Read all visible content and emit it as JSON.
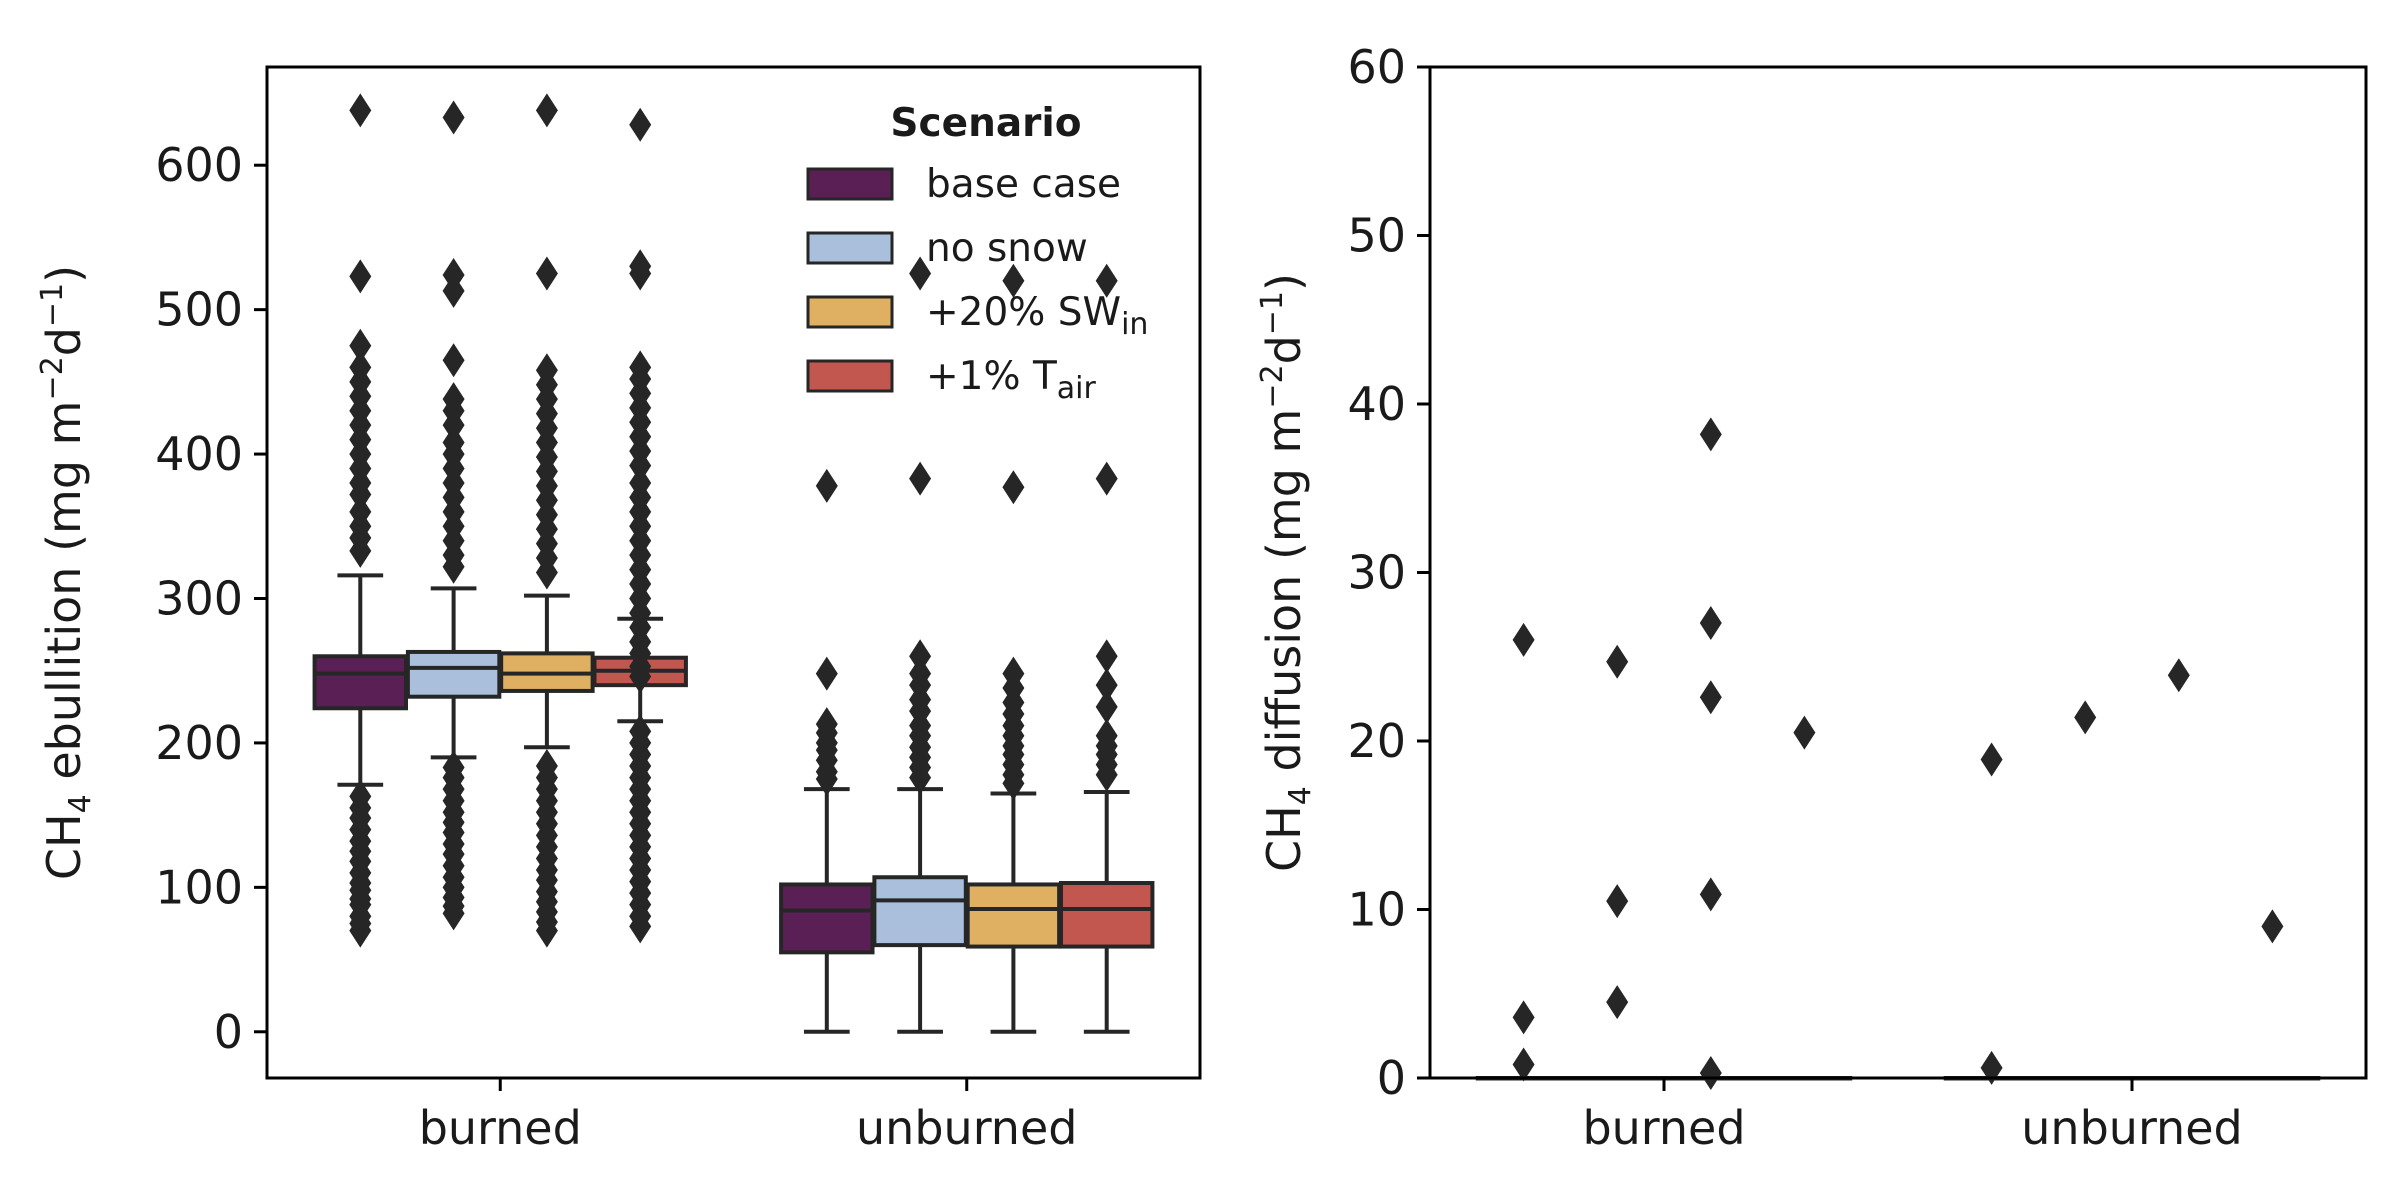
{
  "chart_data": [
    {
      "type": "box",
      "ylabel": {
        "base": "CH",
        "sub": "4",
        "rest": " ebullition (mg m",
        "sup1": "−2",
        "mid": "d",
        "sup2": "−1",
        "end": ")"
      },
      "categories": [
        "burned",
        "unburned"
      ],
      "ylim": [
        -32,
        668
      ],
      "yticks": [
        0,
        100,
        200,
        300,
        400,
        500,
        600
      ],
      "grid": false,
      "legend": {
        "title": "Scenario",
        "position": "top-right",
        "entries": [
          {
            "label": "base case"
          },
          {
            "label": "no snow"
          },
          {
            "label": "+20% SW",
            "sub": "in"
          },
          {
            "label": "+1% T",
            "sub": "air"
          }
        ]
      },
      "series": [
        {
          "name": "base case",
          "color": "#5a1f55",
          "boxes": [
            {
              "category": "burned",
              "whislo": 171,
              "q1": 224,
              "med": 248,
              "q3": 260,
              "whishi": 316,
              "fliers": [
                70,
                75,
                80,
                88,
                92,
                98,
                103,
                110,
                118,
                125,
                132,
                140,
                148,
                155,
                163,
                333,
                342,
                350,
                360,
                372,
                380,
                390,
                400,
                410,
                420,
                430,
                440,
                450,
                460,
                475,
                523,
                638
              ]
            },
            {
              "category": "unburned",
              "whislo": 0,
              "q1": 55,
              "med": 84,
              "q3": 102,
              "whishi": 168,
              "fliers": [
                175,
                180,
                188,
                195,
                200,
                207,
                213,
                248,
                378
              ]
            }
          ]
        },
        {
          "name": "no snow",
          "color": "#a9bfdb",
          "boxes": [
            {
              "category": "burned",
              "whislo": 190,
              "q1": 232,
              "med": 252,
              "q3": 263,
              "whishi": 307,
              "fliers": [
                82,
                87,
                93,
                100,
                107,
                115,
                123,
                130,
                138,
                145,
                152,
                160,
                168,
                176,
                183,
                322,
                330,
                340,
                350,
                360,
                370,
                380,
                390,
                400,
                408,
                420,
                430,
                438,
                465,
                513,
                524,
                633
              ]
            },
            {
              "category": "unburned",
              "whislo": 0,
              "q1": 60,
              "med": 91,
              "q3": 107,
              "whishi": 168,
              "fliers": [
                176,
                183,
                190,
                197,
                205,
                212,
                222,
                230,
                240,
                248,
                260,
                383,
                525
              ]
            }
          ]
        },
        {
          "name": "+20% SW_in",
          "color": "#e0b062",
          "boxes": [
            {
              "category": "burned",
              "whislo": 197,
              "q1": 236,
              "med": 248,
              "q3": 262,
              "whishi": 302,
              "fliers": [
                70,
                76,
                83,
                90,
                97,
                105,
                112,
                120,
                128,
                136,
                144,
                152,
                160,
                168,
                176,
                184,
                318,
                328,
                338,
                348,
                358,
                368,
                378,
                388,
                398,
                408,
                418,
                428,
                438,
                448,
                458,
                525,
                638
              ]
            },
            {
              "category": "unburned",
              "whislo": 0,
              "q1": 59,
              "med": 85,
              "q3": 102,
              "whishi": 165,
              "fliers": [
                172,
                178,
                185,
                192,
                198,
                205,
                212,
                220,
                228,
                238,
                248,
                377,
                520
              ]
            }
          ]
        },
        {
          "name": "+1% T_air",
          "color": "#c1574f",
          "boxes": [
            {
              "category": "burned",
              "whislo": 215,
              "q1": 240,
              "med": 250,
              "q3": 259,
              "whishi": 286,
              "fliers": [
                73,
                80,
                88,
                96,
                104,
                112,
                120,
                128,
                136,
                144,
                152,
                160,
                168,
                176,
                184,
                192,
                200,
                208,
                246,
                253,
                262,
                270,
                280,
                290,
                300,
                310,
                320,
                330,
                340,
                350,
                360,
                370,
                380,
                392,
                402,
                412,
                422,
                432,
                442,
                452,
                460,
                525,
                530,
                628
              ]
            },
            {
              "category": "unburned",
              "whislo": 0,
              "q1": 59,
              "med": 85,
              "q3": 103,
              "whishi": 166,
              "fliers": [
                178,
                185,
                192,
                198,
                205,
                225,
                240,
                260,
                383,
                520
              ]
            }
          ]
        }
      ]
    },
    {
      "type": "box",
      "ylabel": {
        "base": "CH",
        "sub": "4",
        "rest": " diffusion (mg m",
        "sup1": "−2",
        "mid": "d",
        "sup2": "−1",
        "end": ")"
      },
      "categories": [
        "burned",
        "unburned"
      ],
      "ylim": [
        0,
        60
      ],
      "yticks": [
        0,
        10,
        20,
        30,
        40,
        50,
        60
      ],
      "grid": false,
      "series": [
        {
          "name": "base case",
          "color": "#5a1f55",
          "boxes": [
            {
              "category": "burned",
              "whislo": 0,
              "q1": 0,
              "med": 0,
              "q3": 0,
              "whishi": 0,
              "fliers": [
                26,
                3.6,
                0.8
              ]
            },
            {
              "category": "unburned",
              "whislo": 0,
              "q1": 0,
              "med": 0,
              "q3": 0,
              "whishi": 0,
              "fliers": [
                18.9,
                0.6
              ]
            }
          ]
        },
        {
          "name": "no snow",
          "color": "#a9bfdb",
          "boxes": [
            {
              "category": "burned",
              "whislo": 0,
              "q1": 0,
              "med": 0,
              "q3": 0,
              "whishi": 0,
              "fliers": [
                24.7,
                10.5,
                4.5
              ]
            },
            {
              "category": "unburned",
              "whislo": 0,
              "q1": 0,
              "med": 0,
              "q3": 0,
              "whishi": 0,
              "fliers": [
                21.4
              ]
            }
          ]
        },
        {
          "name": "+20% SW_in",
          "color": "#e0b062",
          "boxes": [
            {
              "category": "burned",
              "whislo": 0,
              "q1": 0,
              "med": 0,
              "q3": 0,
              "whishi": 0,
              "fliers": [
                38.2,
                27,
                22.6,
                10.9,
                0.3
              ]
            },
            {
              "category": "unburned",
              "whislo": 0,
              "q1": 0,
              "med": 0,
              "q3": 0,
              "whishi": 0,
              "fliers": [
                23.9
              ]
            }
          ]
        },
        {
          "name": "+1% T_air",
          "color": "#c1574f",
          "boxes": [
            {
              "category": "burned",
              "whislo": 0,
              "q1": 0,
              "med": 0,
              "q3": 0,
              "whishi": 0,
              "fliers": [
                20.5
              ]
            },
            {
              "category": "unburned",
              "whislo": 0,
              "q1": 0,
              "med": 0,
              "q3": 0,
              "whishi": 0,
              "fliers": [
                9
              ]
            }
          ]
        }
      ]
    }
  ]
}
